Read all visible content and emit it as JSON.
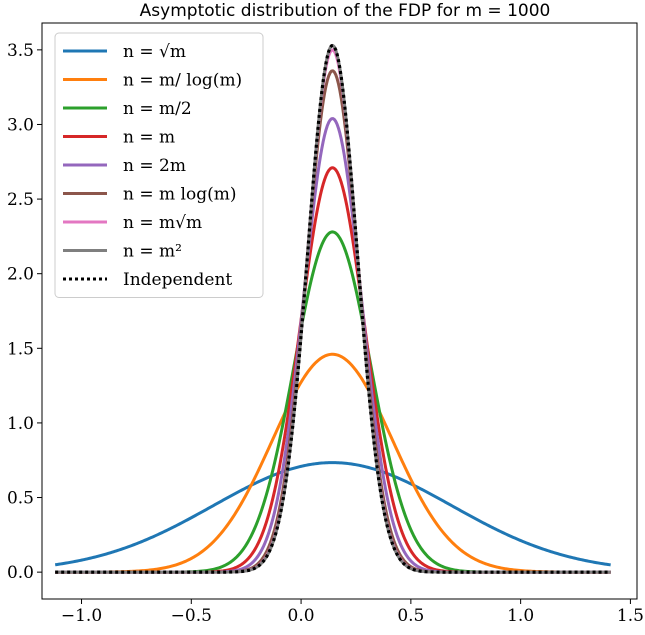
{
  "chart_data": {
    "type": "line",
    "title": "Asymptotic distribution of the FDP for m = 1000",
    "xlabel": "",
    "ylabel": "",
    "xlim": [
      -1.18,
      1.53
    ],
    "ylim": [
      -0.18,
      3.68
    ],
    "x_ticks": [
      -1.0,
      -0.5,
      0.0,
      0.5,
      1.0,
      1.5
    ],
    "x_tick_labels": [
      "−1.0",
      "−0.5",
      "0.0",
      "0.5",
      "1.0",
      "1.5"
    ],
    "y_ticks": [
      0.0,
      0.5,
      1.0,
      1.5,
      2.0,
      2.5,
      3.0,
      3.5
    ],
    "y_tick_labels": [
      "0.0",
      "0.5",
      "1.0",
      "1.5",
      "2.0",
      "2.5",
      "3.0",
      "3.5"
    ],
    "x_range": [
      -1.12,
      1.41
    ],
    "grid": false,
    "legend_position": "top-left",
    "series": [
      {
        "name": "n = √m",
        "color": "#1f77b4",
        "style": "solid",
        "mean": 0.143,
        "peak": 0.734
      },
      {
        "name": "n = m/ log(m)",
        "color": "#ff7f0e",
        "style": "solid",
        "mean": 0.143,
        "peak": 1.46
      },
      {
        "name": "n = m/2",
        "color": "#2ca02c",
        "style": "solid",
        "mean": 0.143,
        "peak": 2.28
      },
      {
        "name": "n = m",
        "color": "#d62728",
        "style": "solid",
        "mean": 0.143,
        "peak": 2.71
      },
      {
        "name": "n = 2m",
        "color": "#9467bd",
        "style": "solid",
        "mean": 0.143,
        "peak": 3.04
      },
      {
        "name": "n = m log(m)",
        "color": "#8c564b",
        "style": "solid",
        "mean": 0.143,
        "peak": 3.36
      },
      {
        "name": "n = m√m",
        "color": "#e377c2",
        "style": "solid",
        "mean": 0.143,
        "peak": 3.5
      },
      {
        "name": "n = m²",
        "color": "#7f7f7f",
        "style": "solid",
        "mean": 0.143,
        "peak": 3.53
      },
      {
        "name": "Independent",
        "color": "#000000",
        "style": "dotted",
        "mean": 0.143,
        "peak": 3.53
      }
    ]
  }
}
